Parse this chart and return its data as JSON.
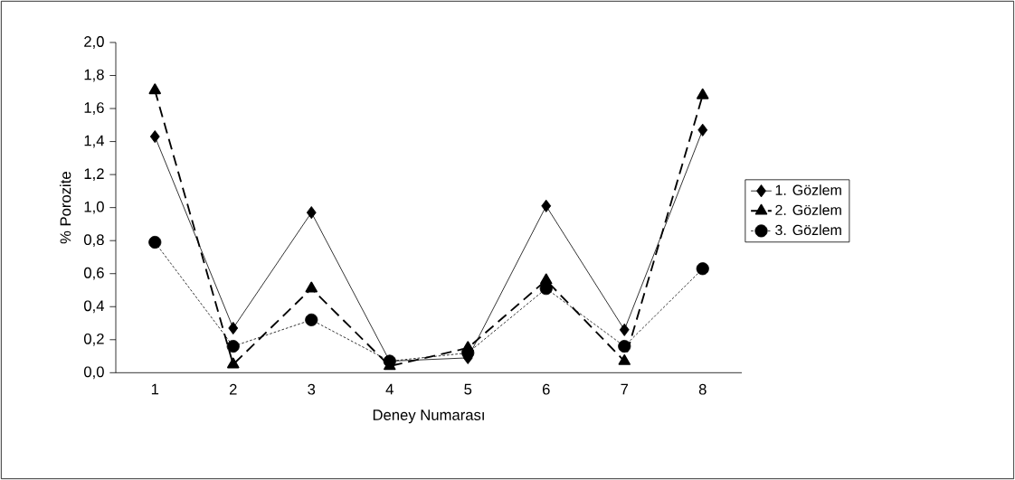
{
  "chart_data": {
    "type": "line",
    "xlabel": "Deney Numarası",
    "ylabel": "% Porozite",
    "categories": [
      "1",
      "2",
      "3",
      "4",
      "5",
      "6",
      "7",
      "8"
    ],
    "series": [
      {
        "name": "1. Gözlem",
        "color": "#000000",
        "marker": "diamond",
        "line_style": "solid",
        "values": [
          1.43,
          0.27,
          0.97,
          0.07,
          0.09,
          1.01,
          0.26,
          1.47
        ]
      },
      {
        "name": "2. Gözlem",
        "color": "#000000",
        "marker": "triangle",
        "line_style": "dashed",
        "values": [
          1.71,
          0.05,
          0.51,
          0.04,
          0.15,
          0.56,
          0.07,
          1.68
        ]
      },
      {
        "name": "3. Gözlem",
        "color": "#000000",
        "marker": "circle",
        "line_style": "dotted",
        "values": [
          0.79,
          0.16,
          0.32,
          0.07,
          0.12,
          0.51,
          0.16,
          0.63
        ]
      }
    ],
    "ylim": [
      0,
      2
    ],
    "yticks": [
      {
        "value": 0,
        "label": "0,0"
      },
      {
        "value": 0.2,
        "label": "0,2"
      },
      {
        "value": 0.4,
        "label": "0,4"
      },
      {
        "value": 0.6,
        "label": "0,6"
      },
      {
        "value": 0.8,
        "label": "0,8"
      },
      {
        "value": 1.0,
        "label": "1,0"
      },
      {
        "value": 1.2,
        "label": "1,2"
      },
      {
        "value": 1.4,
        "label": "1,4"
      },
      {
        "value": 1.6,
        "label": "1,6"
      },
      {
        "value": 1.8,
        "label": "1,8"
      },
      {
        "value": 2.0,
        "label": "2,0"
      }
    ],
    "grid": false,
    "legend": "right"
  }
}
